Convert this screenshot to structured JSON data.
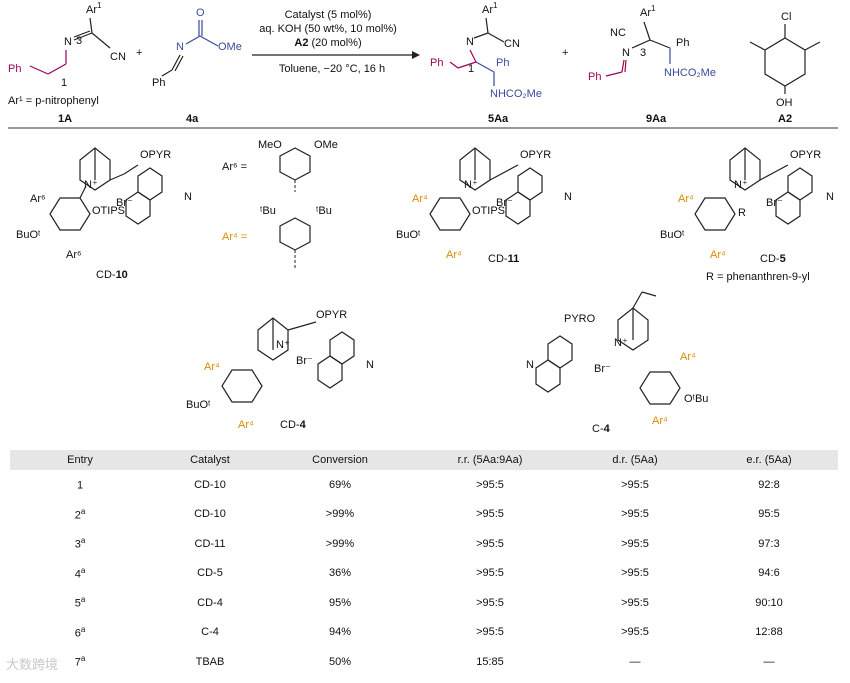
{
  "scheme": {
    "conditions": {
      "line1": "Catalyst (5 mol%)",
      "line2": "aq. KOH (50 wt%, 10 mol%)",
      "line3_bold": "A2",
      "line3_rest": " (20 mol%)",
      "line4": "Toluene,  −20 °C, 16 h"
    },
    "compounds": {
      "c1A": "1A",
      "c4a": "4a",
      "c5Aa": "5Aa",
      "c9Aa": "9Aa",
      "cA2": "A2"
    },
    "atoms": {
      "ar1": "Ar",
      "sup1": "1",
      "n": "N",
      "cn": "CN",
      "ph": "Ph",
      "num3": "3",
      "num1": "1",
      "ome": "OMe",
      "o": "O",
      "nhco2me": "NHCO₂Me",
      "nc": "NC",
      "cl": "Cl",
      "oh": "OH",
      "plus": "+"
    },
    "ar1_def": "Ar¹ = p-nitrophenyl"
  },
  "catalysts": {
    "cd10": {
      "prefix": "CD-",
      "num": "10"
    },
    "cd11": {
      "prefix": "CD-",
      "num": "11"
    },
    "cd5": {
      "prefix": "CD-",
      "num": "5"
    },
    "cd4": {
      "prefix": "CD-",
      "num": "4"
    },
    "c4": {
      "prefix": "C-",
      "num": "4"
    },
    "ar6_def": "Ar⁶ =",
    "ar4_def": "Ar⁴ =",
    "r_def": "R = phenanthren-9-yl",
    "labels": {
      "opyr": "OPYR",
      "pyro": "PYRO",
      "br": "Br⁻",
      "otips": "OTIPS",
      "buo": "BuOᵗ",
      "otbu": "OᵗBu",
      "ar6": "Ar⁶",
      "ar4": "Ar⁴",
      "r": "R",
      "n": "N",
      "nplus": "N⁺",
      "meo": "MeO",
      "ome": "OMe",
      "tbu": "ᵗBu"
    }
  },
  "table": {
    "headers": [
      "Entry",
      "Catalyst",
      "Conversion",
      "r.r. (5Aa:9Aa)",
      "d.r. (5Aa)",
      "e.r. (5Aa)"
    ],
    "rows": [
      {
        "entry": "1",
        "sup": "",
        "catalyst": "CD-10",
        "conversion": "69%",
        "rr": ">95:5",
        "dr": ">95:5",
        "er": "92:8"
      },
      {
        "entry": "2",
        "sup": "a",
        "catalyst": "CD-10",
        "conversion": ">99%",
        "rr": ">95:5",
        "dr": ">95:5",
        "er": "95:5"
      },
      {
        "entry": "3",
        "sup": "a",
        "catalyst": "CD-11",
        "conversion": ">99%",
        "rr": ">95:5",
        "dr": ">95:5",
        "er": "97:3"
      },
      {
        "entry": "4",
        "sup": "a",
        "catalyst": "CD-5",
        "conversion": "36%",
        "rr": ">95:5",
        "dr": ">95:5",
        "er": "94:6"
      },
      {
        "entry": "5",
        "sup": "a",
        "catalyst": "CD-4",
        "conversion": "95%",
        "rr": ">95:5",
        "dr": ">95:5",
        "er": "90:10"
      },
      {
        "entry": "6",
        "sup": "a",
        "catalyst": "C-4",
        "conversion": "94%",
        "rr": ">95:5",
        "dr": ">95:5",
        "er": "12:88"
      },
      {
        "entry": "7",
        "sup": "a",
        "catalyst": "TBAB",
        "conversion": "50%",
        "rr": "15:85",
        "dr": "—",
        "er": "—"
      }
    ]
  },
  "watermark": "大数跨境"
}
